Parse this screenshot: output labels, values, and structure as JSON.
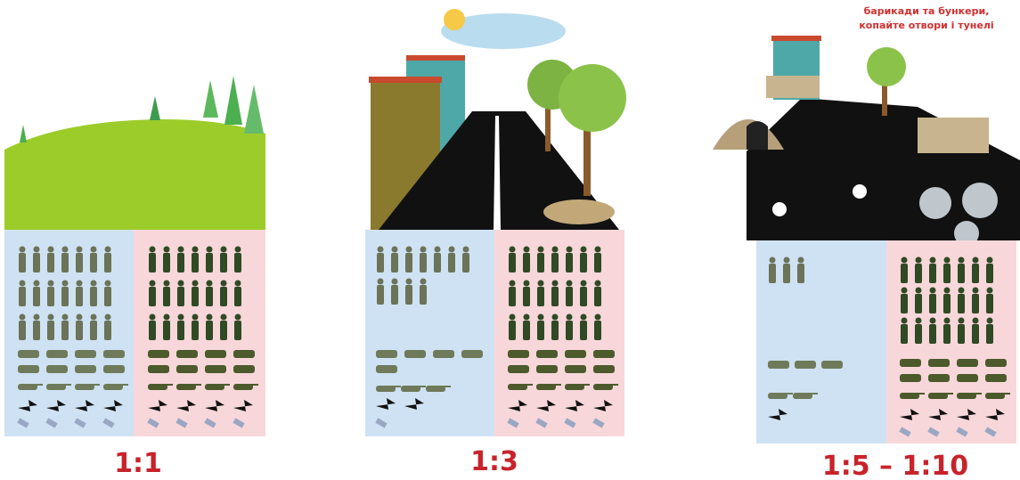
{
  "annotation": {
    "lines": [
      "барикади та бункери,",
      "копайте отвори і тунелі"
    ]
  },
  "panels": [
    {
      "ratio": "1:1"
    },
    {
      "ratio": "1:3"
    },
    {
      "ratio": "1:5 – 1:10"
    }
  ]
}
